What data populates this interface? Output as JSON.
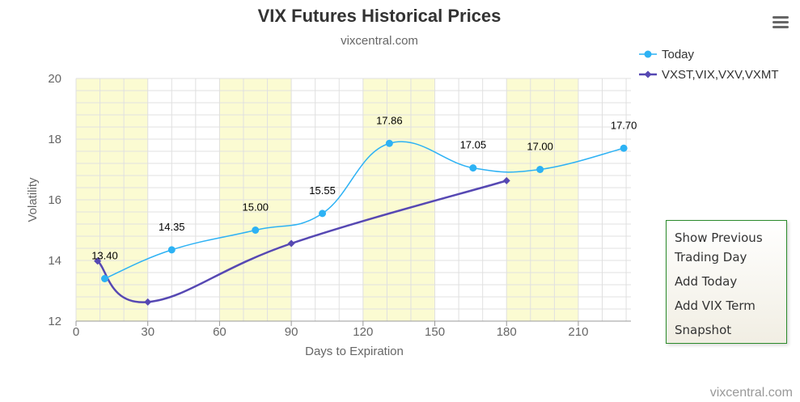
{
  "chart_data": {
    "type": "line",
    "title": "VIX Futures Historical Prices",
    "subtitle": "vixcentral.com",
    "xlabel": "Days to Expiration",
    "ylabel": "Volatility",
    "xlim": [
      0,
      232
    ],
    "ylim": [
      12,
      20
    ],
    "x_ticks": [
      0,
      30,
      60,
      90,
      120,
      150,
      180,
      210
    ],
    "y_ticks": [
      12,
      14,
      16,
      18,
      20
    ],
    "grid": true,
    "shaded_bands": [
      [
        0,
        30
      ],
      [
        60,
        90
      ],
      [
        120,
        150
      ],
      [
        180,
        210
      ]
    ],
    "band_color": "#fbfbd2",
    "legend_position": "top-right",
    "series": [
      {
        "name": "Today",
        "color": "#2db2f4",
        "marker": "circle",
        "x": [
          12,
          40,
          75,
          103,
          131,
          166,
          194,
          229
        ],
        "y": [
          13.4,
          14.35,
          15.0,
          15.55,
          17.86,
          17.05,
          17.0,
          17.7
        ],
        "labels": [
          "13.40",
          "14.35",
          "15.00",
          "15.55",
          "17.86",
          "17.05",
          "17.00",
          "17.70"
        ]
      },
      {
        "name": "VXST,VIX,VXV,VXMT",
        "color": "#5648b3",
        "marker": "diamond",
        "x": [
          9,
          30,
          90,
          180
        ],
        "y": [
          13.98,
          12.63,
          14.56,
          16.63
        ]
      }
    ]
  },
  "credit": "vixcentral.com",
  "menu": {
    "icon": "hamburger-menu-icon",
    "items": [
      {
        "label": "Show Previous Trading Day"
      },
      {
        "label": "Add Today"
      },
      {
        "label": "Add VIX Term"
      },
      {
        "label": "Snapshot"
      }
    ]
  }
}
